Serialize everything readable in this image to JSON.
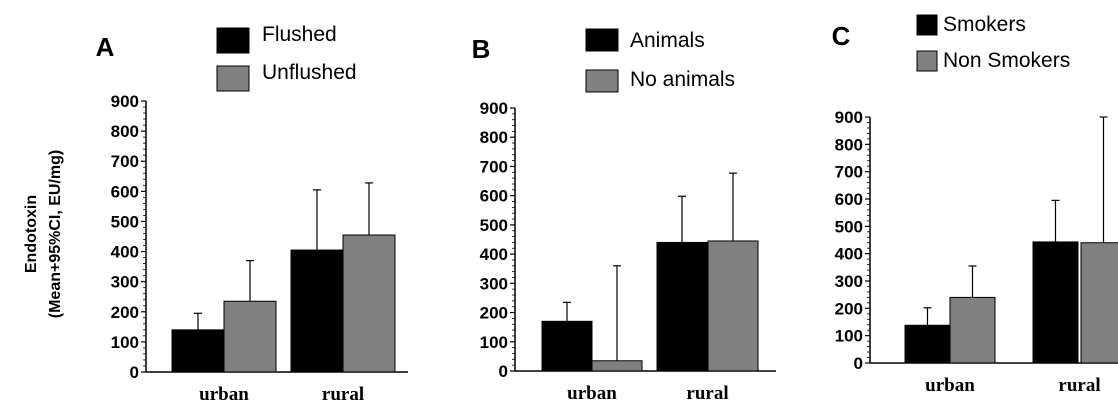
{
  "ylabel_line1": "Endotoxin",
  "ylabel_line2": "(Mean+95%CI, EU/mg)",
  "colors": {
    "black_bar": "#000000",
    "gray_bar": "#808080"
  },
  "chart_data": [
    {
      "type": "bar",
      "panel": "A",
      "categories": [
        "urban",
        "rural"
      ],
      "series": [
        {
          "name": "Flushed",
          "color": "#000000",
          "values": [
            140,
            405
          ],
          "ci_upper": [
            195,
            605
          ]
        },
        {
          "name": "Unflushed",
          "color": "#808080",
          "values": [
            235,
            455
          ],
          "ci_upper": [
            370,
            628
          ]
        }
      ],
      "ylim": [
        0,
        900
      ],
      "yticks": [
        0,
        100,
        200,
        300,
        400,
        500,
        600,
        700,
        800,
        900
      ],
      "legend_position": "top",
      "grid": false
    },
    {
      "type": "bar",
      "panel": "B",
      "categories": [
        "urban",
        "rural"
      ],
      "series": [
        {
          "name": "Animals",
          "color": "#000000",
          "values": [
            170,
            440
          ],
          "ci_upper": [
            235,
            598
          ]
        },
        {
          "name": "No animals",
          "color": "#808080",
          "values": [
            35,
            445
          ],
          "ci_upper": [
            360,
            677
          ]
        }
      ],
      "ylim": [
        0,
        900
      ],
      "yticks": [
        0,
        100,
        200,
        300,
        400,
        500,
        600,
        700,
        800,
        900
      ],
      "legend_position": "top",
      "grid": false
    },
    {
      "type": "bar",
      "panel": "C",
      "categories": [
        "urban",
        "rural"
      ],
      "series": [
        {
          "name": "Smokers",
          "color": "#000000",
          "values": [
            138,
            443
          ],
          "ci_upper": [
            202,
            595
          ]
        },
        {
          "name": "Non Smokers",
          "color": "#808080",
          "values": [
            240,
            440
          ],
          "ci_upper": [
            355,
            900
          ]
        }
      ],
      "ylim": [
        0,
        900
      ],
      "yticks": [
        0,
        100,
        200,
        300,
        400,
        500,
        600,
        700,
        800,
        900
      ],
      "legend_position": "top",
      "grid": false
    }
  ]
}
